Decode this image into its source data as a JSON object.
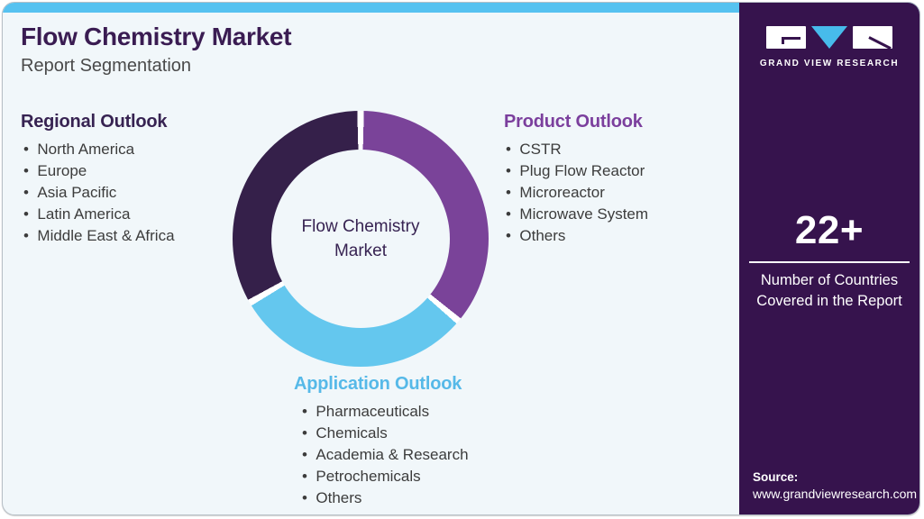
{
  "header": {
    "title": "Flow Chemistry Market",
    "subtitle": "Report Segmentation"
  },
  "sections": {
    "regional": {
      "heading": "Regional Outlook",
      "items": [
        "North America",
        "Europe",
        "Asia Pacific",
        "Latin America",
        "Middle East & Africa"
      ]
    },
    "product": {
      "heading": "Product Outlook",
      "items": [
        "CSTR",
        "Plug Flow Reactor",
        "Microreactor",
        "Microwave System",
        "Others"
      ]
    },
    "application": {
      "heading": "Application Outlook",
      "items": [
        "Pharmaceuticals",
        "Chemicals",
        "Academia & Research",
        "Petrochemicals",
        "Others"
      ]
    }
  },
  "chart_data": {
    "type": "pie",
    "title": "Flow Chemistry Market",
    "center_label_lines": [
      "Flow Chemistry",
      "Market"
    ],
    "legend_position": "none",
    "segments": [
      {
        "label": "Product Outlook",
        "color": "#7A4399",
        "start_deg": 1.5,
        "end_deg": 128.5,
        "approx_share_pct": 35
      },
      {
        "label": "Application Outlook",
        "color": "#64C7EE",
        "start_deg": 131.5,
        "end_deg": 238.5,
        "approx_share_pct": 30
      },
      {
        "label": "Regional Outlook",
        "color": "#35204A",
        "start_deg": 241.5,
        "end_deg": 358.5,
        "approx_share_pct": 35
      }
    ],
    "gap_color": "#FFFFFF"
  },
  "sidebar": {
    "brand_name": "GRAND VIEW RESEARCH",
    "stat_value": "22+",
    "stat_caption": "Number of Countries Covered in the Report",
    "source_label": "Source:",
    "source_url": "www.grandviewresearch.com"
  },
  "colors": {
    "topbar": "#56C2F0",
    "card_bg": "#F1F7FA",
    "title": "#3A1C52",
    "heading_regional": "#372352",
    "heading_product": "#7B3F9D",
    "heading_application": "#56B9E8",
    "body_text": "#3C3C3C",
    "sidebar_bg": "#36134D",
    "logo_triangle": "#47BBEB",
    "dark_segment": "#35204A",
    "purple_segment": "#7A4399",
    "blue_segment": "#64C7EE"
  }
}
